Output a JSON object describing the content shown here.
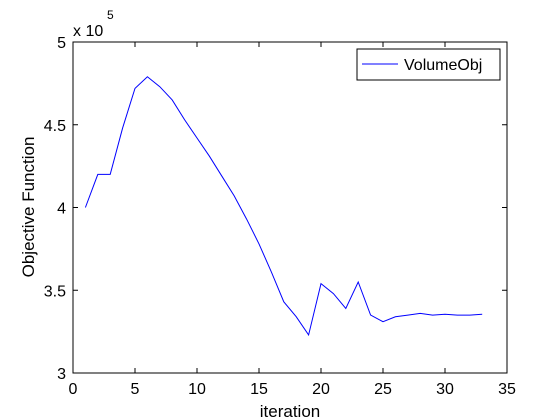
{
  "chart_data": {
    "type": "line",
    "title": "",
    "xlabel": "iteration",
    "ylabel": "Objective Function",
    "xlim": [
      0,
      35
    ],
    "ylim": [
      300000,
      500000
    ],
    "xticks": [
      0,
      5,
      10,
      15,
      20,
      25,
      30,
      35
    ],
    "yticks": [
      300000,
      350000,
      400000,
      450000,
      500000
    ],
    "ytick_labels": [
      "3",
      "3.5",
      "4",
      "4.5",
      "5"
    ],
    "y_multiplier": {
      "base": "x 10",
      "exponent": "5"
    },
    "grid": false,
    "legend": {
      "placement": "top-right",
      "entries": [
        "VolumeObj"
      ]
    },
    "series": [
      {
        "name": "VolumeObj",
        "color": "#0000ff",
        "x": [
          1,
          2,
          3,
          4,
          5,
          6,
          7,
          8,
          9,
          10,
          11,
          12,
          13,
          14,
          15,
          16,
          17,
          18,
          19,
          20,
          21,
          22,
          23,
          24,
          25,
          26,
          27,
          28,
          29,
          30,
          31,
          32,
          33
        ],
        "y": [
          400000,
          420000,
          420000,
          448000,
          472000,
          479000,
          473000,
          465000,
          453000,
          442000,
          431000,
          419000,
          407000,
          393000,
          378000,
          361000,
          343000,
          334000,
          323000,
          354000,
          348000,
          339000,
          355000,
          335000,
          331000,
          334000,
          335000,
          336000,
          335000,
          335500,
          335000,
          335000,
          335500
        ]
      }
    ]
  }
}
